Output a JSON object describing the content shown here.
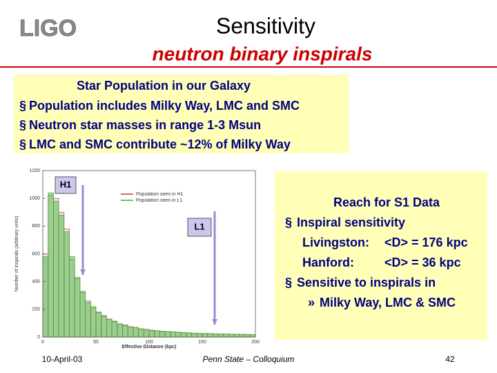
{
  "logo": "LIGO",
  "header": {
    "title": "Sensitivity",
    "subtitle": "neutron binary inspirals"
  },
  "galaxy_box": {
    "heading": "Star Population in our Galaxy",
    "items": [
      {
        "bullet": "§",
        "text": "Population includes Milky Way, LMC and SMC"
      },
      {
        "bullet": "§",
        "text": "Neutron star masses in range 1-3 Msun"
      },
      {
        "bullet": "§",
        "text": "LMC and SMC contribute ~12% of Milky Way"
      }
    ]
  },
  "reach_box": {
    "heading": "Reach for S1 Data",
    "items": [
      {
        "bullet": "§",
        "text": "Inspiral sensitivity"
      },
      {
        "label": "Livingston:",
        "text": "<D> = 176 kpc"
      },
      {
        "label": "Hanford:",
        "text": "<D> = 36 kpc"
      },
      {
        "bullet": "§",
        "text": "Sensitive to inspirals in"
      },
      {
        "sub_bullet": "»",
        "text": "Milky Way, LMC & SMC"
      }
    ]
  },
  "chart_data": {
    "type": "histogram",
    "x_label": "Effective Distance (kpc)",
    "y_label": "Number of inspirals (arbitrary units)",
    "bins": [
      0,
      5,
      10,
      15,
      20,
      25,
      30,
      35,
      40,
      45,
      50,
      55,
      60,
      65,
      70,
      75,
      80,
      85,
      90,
      95,
      100,
      105,
      110,
      115,
      120,
      125,
      130,
      135,
      140,
      145,
      150,
      155,
      160,
      165,
      170,
      175,
      180,
      185,
      190,
      195,
      200
    ],
    "series": [
      {
        "name": "Population seen in H1",
        "color": "#d83030",
        "values": [
          600,
          1020,
          1000,
          900,
          780,
          560,
          420,
          320,
          260,
          210,
          180,
          150,
          130,
          110,
          95,
          85,
          75,
          68,
          60,
          55,
          50,
          45,
          42,
          40,
          38,
          35,
          33,
          30,
          28,
          27,
          26,
          25,
          24,
          23,
          22,
          21,
          20,
          20,
          19,
          18
        ]
      },
      {
        "name": "Population seen in L1",
        "color": "#30b030",
        "values": [
          580,
          1040,
          980,
          880,
          760,
          580,
          430,
          330,
          250,
          220,
          175,
          155,
          125,
          115,
          92,
          88,
          72,
          70,
          58,
          56,
          48,
          46,
          43,
          39,
          37,
          36,
          32,
          31,
          29,
          26,
          25,
          25,
          23,
          22,
          22,
          20,
          20,
          19,
          18,
          18
        ]
      }
    ],
    "xlim": [
      0,
      200
    ],
    "xticks": [
      0,
      50,
      100,
      150,
      200
    ],
    "ylim": [
      0,
      1200
    ],
    "yticks": [
      0,
      200,
      400,
      600,
      800,
      1000,
      1200
    ],
    "legend": "upper center",
    "annotations": [
      "H1",
      "L1"
    ]
  },
  "footer": {
    "date": "10-April-03",
    "venue": "Penn State – Colloquium",
    "page": "42"
  }
}
